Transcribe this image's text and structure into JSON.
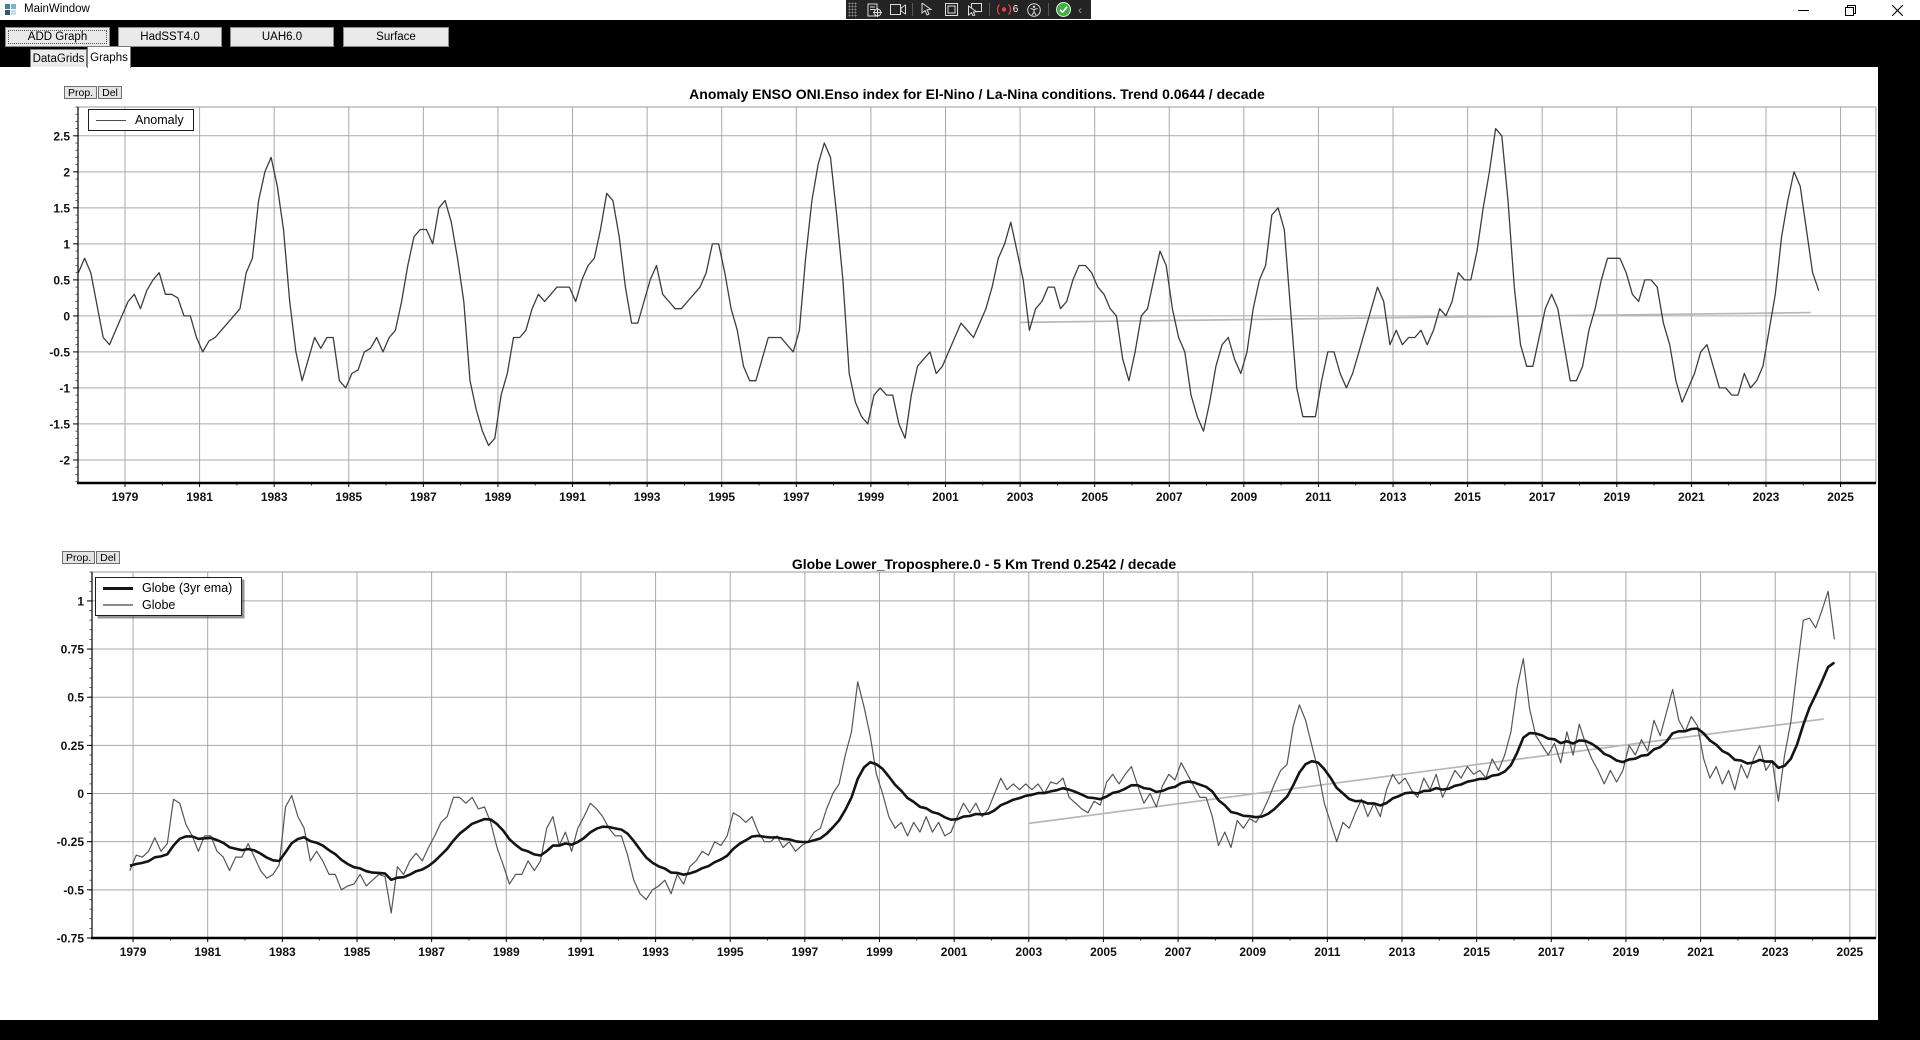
{
  "window": {
    "title": "MainWindow"
  },
  "toolbar": {
    "buttons": [
      "ADD Graph",
      "HadSST4.0",
      "UAH6.0",
      "Surface"
    ]
  },
  "tabs": {
    "items": [
      {
        "label": "DataGrids",
        "active": false
      },
      {
        "label": "Graphs",
        "active": true
      }
    ]
  },
  "ui": {
    "prop_label": "Prop.",
    "del_label": "Del"
  },
  "capture_toolbar": {
    "badge_count": "6"
  },
  "colors": {
    "chrome_bg": "#000000",
    "titlebar_bg": "#ffffff",
    "button_bg": "#e9e9e9",
    "grid": "#a9a9a9",
    "trend": "#b8b8b8",
    "status_ok_green": "#3faf46",
    "alert_red": "#e04343"
  },
  "chart_data": [
    {
      "type": "line",
      "title": "Anomaly ENSO ONI.Enso index for El-Nino / La-Nina conditions. Trend 0.0644 / decade",
      "trend_per_decade": 0.0644,
      "xlim": [
        1977.74,
        2025.95
      ],
      "ylim": [
        -2.32,
        2.9
      ],
      "x_ticks": [
        1979,
        1981,
        1983,
        1985,
        1987,
        1989,
        1991,
        1993,
        1995,
        1997,
        1999,
        2001,
        2003,
        2005,
        2007,
        2009,
        2011,
        2013,
        2015,
        2017,
        2019,
        2021,
        2023,
        2025
      ],
      "y_ticks": [
        2.5,
        2,
        1.5,
        1,
        0.5,
        0,
        -0.5,
        -1,
        -1.5,
        -2
      ],
      "grid": true,
      "legend_position": "top-left",
      "series": [
        {
          "name": "Anomaly",
          "color": "#3d3d3d",
          "width": 1.3,
          "x_start": 1977.75,
          "x_step": 0.16667,
          "values": [
            0.6,
            0.8,
            0.6,
            0.15,
            -0.3,
            -0.4,
            -0.2,
            0.0,
            0.2,
            0.3,
            0.1,
            0.35,
            0.5,
            0.6,
            0.3,
            0.3,
            0.25,
            0.0,
            0.0,
            -0.3,
            -0.5,
            -0.35,
            -0.3,
            -0.2,
            -0.1,
            0.0,
            0.1,
            0.6,
            0.8,
            1.6,
            2.0,
            2.2,
            1.8,
            1.2,
            0.2,
            -0.5,
            -0.9,
            -0.6,
            -0.3,
            -0.45,
            -0.3,
            -0.3,
            -0.9,
            -1.0,
            -0.8,
            -0.75,
            -0.5,
            -0.45,
            -0.3,
            -0.5,
            -0.3,
            -0.2,
            0.2,
            0.7,
            1.1,
            1.2,
            1.2,
            1.0,
            1.5,
            1.6,
            1.3,
            0.8,
            0.2,
            -0.9,
            -1.3,
            -1.6,
            -1.8,
            -1.7,
            -1.1,
            -0.8,
            -0.3,
            -0.3,
            -0.2,
            0.1,
            0.3,
            0.2,
            0.3,
            0.4,
            0.4,
            0.4,
            0.2,
            0.5,
            0.7,
            0.8,
            1.2,
            1.7,
            1.6,
            1.1,
            0.4,
            -0.1,
            -0.1,
            0.2,
            0.5,
            0.7,
            0.3,
            0.2,
            0.1,
            0.1,
            0.2,
            0.3,
            0.4,
            0.6,
            1.0,
            1.0,
            0.6,
            0.1,
            -0.2,
            -0.7,
            -0.9,
            -0.9,
            -0.6,
            -0.3,
            -0.3,
            -0.3,
            -0.4,
            -0.5,
            -0.2,
            0.8,
            1.6,
            2.1,
            2.4,
            2.2,
            1.4,
            0.5,
            -0.8,
            -1.2,
            -1.4,
            -1.5,
            -1.1,
            -1.0,
            -1.1,
            -1.1,
            -1.5,
            -1.7,
            -1.1,
            -0.7,
            -0.6,
            -0.5,
            -0.8,
            -0.7,
            -0.5,
            -0.3,
            -0.1,
            -0.2,
            -0.3,
            -0.1,
            0.1,
            0.4,
            0.8,
            1.0,
            1.3,
            0.9,
            0.5,
            -0.2,
            0.1,
            0.2,
            0.4,
            0.4,
            0.1,
            0.2,
            0.5,
            0.7,
            0.7,
            0.6,
            0.4,
            0.3,
            0.1,
            0.0,
            -0.6,
            -0.9,
            -0.5,
            0.0,
            0.1,
            0.5,
            0.9,
            0.7,
            0.1,
            -0.3,
            -0.5,
            -1.1,
            -1.4,
            -1.6,
            -1.2,
            -0.7,
            -0.4,
            -0.3,
            -0.6,
            -0.8,
            -0.5,
            0.1,
            0.5,
            0.7,
            1.4,
            1.5,
            1.2,
            0.1,
            -1.0,
            -1.4,
            -1.4,
            -1.4,
            -0.9,
            -0.5,
            -0.5,
            -0.8,
            -1.0,
            -0.8,
            -0.5,
            -0.2,
            0.1,
            0.4,
            0.2,
            -0.4,
            -0.2,
            -0.4,
            -0.3,
            -0.3,
            -0.2,
            -0.4,
            -0.2,
            0.1,
            0.0,
            0.2,
            0.6,
            0.5,
            0.5,
            0.9,
            1.5,
            2.0,
            2.6,
            2.5,
            1.6,
            0.4,
            -0.4,
            -0.7,
            -0.7,
            -0.3,
            0.1,
            0.3,
            0.1,
            -0.4,
            -0.9,
            -0.9,
            -0.7,
            -0.2,
            0.1,
            0.5,
            0.8,
            0.8,
            0.8,
            0.6,
            0.3,
            0.2,
            0.5,
            0.5,
            0.4,
            -0.1,
            -0.4,
            -0.9,
            -1.2,
            -1.0,
            -0.8,
            -0.5,
            -0.4,
            -0.7,
            -1.0,
            -1.0,
            -1.1,
            -1.1,
            -0.8,
            -1.0,
            -0.9,
            -0.7,
            -0.2,
            0.3,
            1.1,
            1.6,
            2.0,
            1.8,
            1.2,
            0.6,
            0.35
          ]
        }
      ],
      "trend_line": {
        "x1": 2003.0,
        "y1": -0.09,
        "x2": 2024.2,
        "y2": 0.046,
        "color": "#b8b8b8"
      }
    },
    {
      "type": "line",
      "title": "Globe Lower_Troposphere.0 - 5 Km Trend 0.2542 / decade",
      "trend_per_decade": 0.2542,
      "xlim": [
        1977.9,
        2025.7
      ],
      "ylim": [
        -0.75,
        1.15
      ],
      "x_ticks": [
        1979,
        1981,
        1983,
        1985,
        1987,
        1989,
        1991,
        1993,
        1995,
        1997,
        1999,
        2001,
        2003,
        2005,
        2007,
        2009,
        2011,
        2013,
        2015,
        2017,
        2019,
        2021,
        2023,
        2025
      ],
      "y_ticks": [
        1,
        0.75,
        0.5,
        0.25,
        0,
        -0.25,
        -0.5,
        -0.75
      ],
      "grid": true,
      "legend_position": "top-left",
      "series": [
        {
          "name": "Globe",
          "color": "#565656",
          "width": 1.2,
          "x_start": 1978.9167,
          "x_step": 0.16667,
          "values": [
            -0.4,
            -0.32,
            -0.33,
            -0.3,
            -0.23,
            -0.3,
            -0.26,
            -0.03,
            -0.05,
            -0.16,
            -0.22,
            -0.3,
            -0.22,
            -0.22,
            -0.3,
            -0.33,
            -0.4,
            -0.33,
            -0.33,
            -0.26,
            -0.33,
            -0.4,
            -0.44,
            -0.42,
            -0.37,
            -0.07,
            -0.01,
            -0.12,
            -0.18,
            -0.35,
            -0.3,
            -0.35,
            -0.42,
            -0.42,
            -0.5,
            -0.48,
            -0.47,
            -0.42,
            -0.48,
            -0.45,
            -0.42,
            -0.43,
            -0.62,
            -0.38,
            -0.42,
            -0.35,
            -0.31,
            -0.35,
            -0.28,
            -0.22,
            -0.15,
            -0.12,
            -0.02,
            -0.02,
            -0.05,
            -0.02,
            -0.08,
            -0.07,
            -0.15,
            -0.28,
            -0.37,
            -0.47,
            -0.42,
            -0.42,
            -0.35,
            -0.4,
            -0.35,
            -0.18,
            -0.12,
            -0.27,
            -0.2,
            -0.3,
            -0.18,
            -0.12,
            -0.05,
            -0.08,
            -0.12,
            -0.18,
            -0.22,
            -0.22,
            -0.32,
            -0.45,
            -0.52,
            -0.55,
            -0.5,
            -0.48,
            -0.45,
            -0.52,
            -0.42,
            -0.47,
            -0.38,
            -0.35,
            -0.3,
            -0.32,
            -0.25,
            -0.27,
            -0.22,
            -0.1,
            -0.12,
            -0.15,
            -0.12,
            -0.2,
            -0.25,
            -0.25,
            -0.22,
            -0.28,
            -0.25,
            -0.3,
            -0.27,
            -0.25,
            -0.2,
            -0.18,
            -0.08,
            0.0,
            0.05,
            0.2,
            0.32,
            0.58,
            0.45,
            0.3,
            0.1,
            0.0,
            -0.12,
            -0.18,
            -0.15,
            -0.22,
            -0.15,
            -0.2,
            -0.12,
            -0.2,
            -0.15,
            -0.22,
            -0.2,
            -0.12,
            -0.05,
            -0.1,
            -0.05,
            -0.12,
            -0.08,
            0.0,
            0.08,
            0.02,
            0.05,
            0.02,
            0.05,
            0.02,
            0.05,
            0.0,
            0.06,
            0.05,
            0.08,
            -0.02,
            -0.05,
            -0.08,
            -0.1,
            -0.04,
            -0.06,
            0.06,
            0.1,
            0.05,
            0.1,
            0.14,
            0.04,
            -0.05,
            0.0,
            -0.07,
            0.04,
            0.1,
            0.07,
            0.16,
            0.1,
            0.04,
            -0.02,
            -0.02,
            -0.12,
            -0.27,
            -0.2,
            -0.28,
            -0.14,
            -0.18,
            -0.13,
            -0.15,
            -0.1,
            -0.03,
            0.05,
            0.12,
            0.15,
            0.35,
            0.46,
            0.38,
            0.25,
            0.12,
            -0.05,
            -0.15,
            -0.25,
            -0.15,
            -0.18,
            -0.1,
            -0.03,
            -0.12,
            -0.05,
            -0.12,
            0.02,
            0.1,
            0.05,
            0.08,
            0.02,
            -0.02,
            0.08,
            0.02,
            0.1,
            -0.02,
            0.05,
            0.12,
            0.08,
            0.14,
            0.1,
            0.12,
            0.08,
            0.18,
            0.12,
            0.2,
            0.32,
            0.55,
            0.7,
            0.44,
            0.3,
            0.25,
            0.2,
            0.26,
            0.16,
            0.32,
            0.2,
            0.36,
            0.26,
            0.18,
            0.12,
            0.05,
            0.12,
            0.06,
            0.12,
            0.25,
            0.2,
            0.28,
            0.22,
            0.38,
            0.3,
            0.42,
            0.54,
            0.38,
            0.32,
            0.4,
            0.35,
            0.18,
            0.08,
            0.14,
            0.05,
            0.12,
            0.02,
            0.15,
            0.08,
            0.18,
            0.25,
            0.12,
            0.17,
            -0.04,
            0.2,
            0.37,
            0.64,
            0.9,
            0.91,
            0.86,
            0.95,
            1.05,
            0.8
          ]
        }
      ],
      "derived": {
        "name": "Globe (3yr ema)",
        "method": "ema",
        "alpha": 0.16,
        "init": -0.37,
        "color": "#141414",
        "width": 2.6
      },
      "trend_line": {
        "x1": 2003.0,
        "y1": -0.155,
        "x2": 2024.3,
        "y2": 0.387,
        "color": "#b8b8b8"
      }
    }
  ]
}
